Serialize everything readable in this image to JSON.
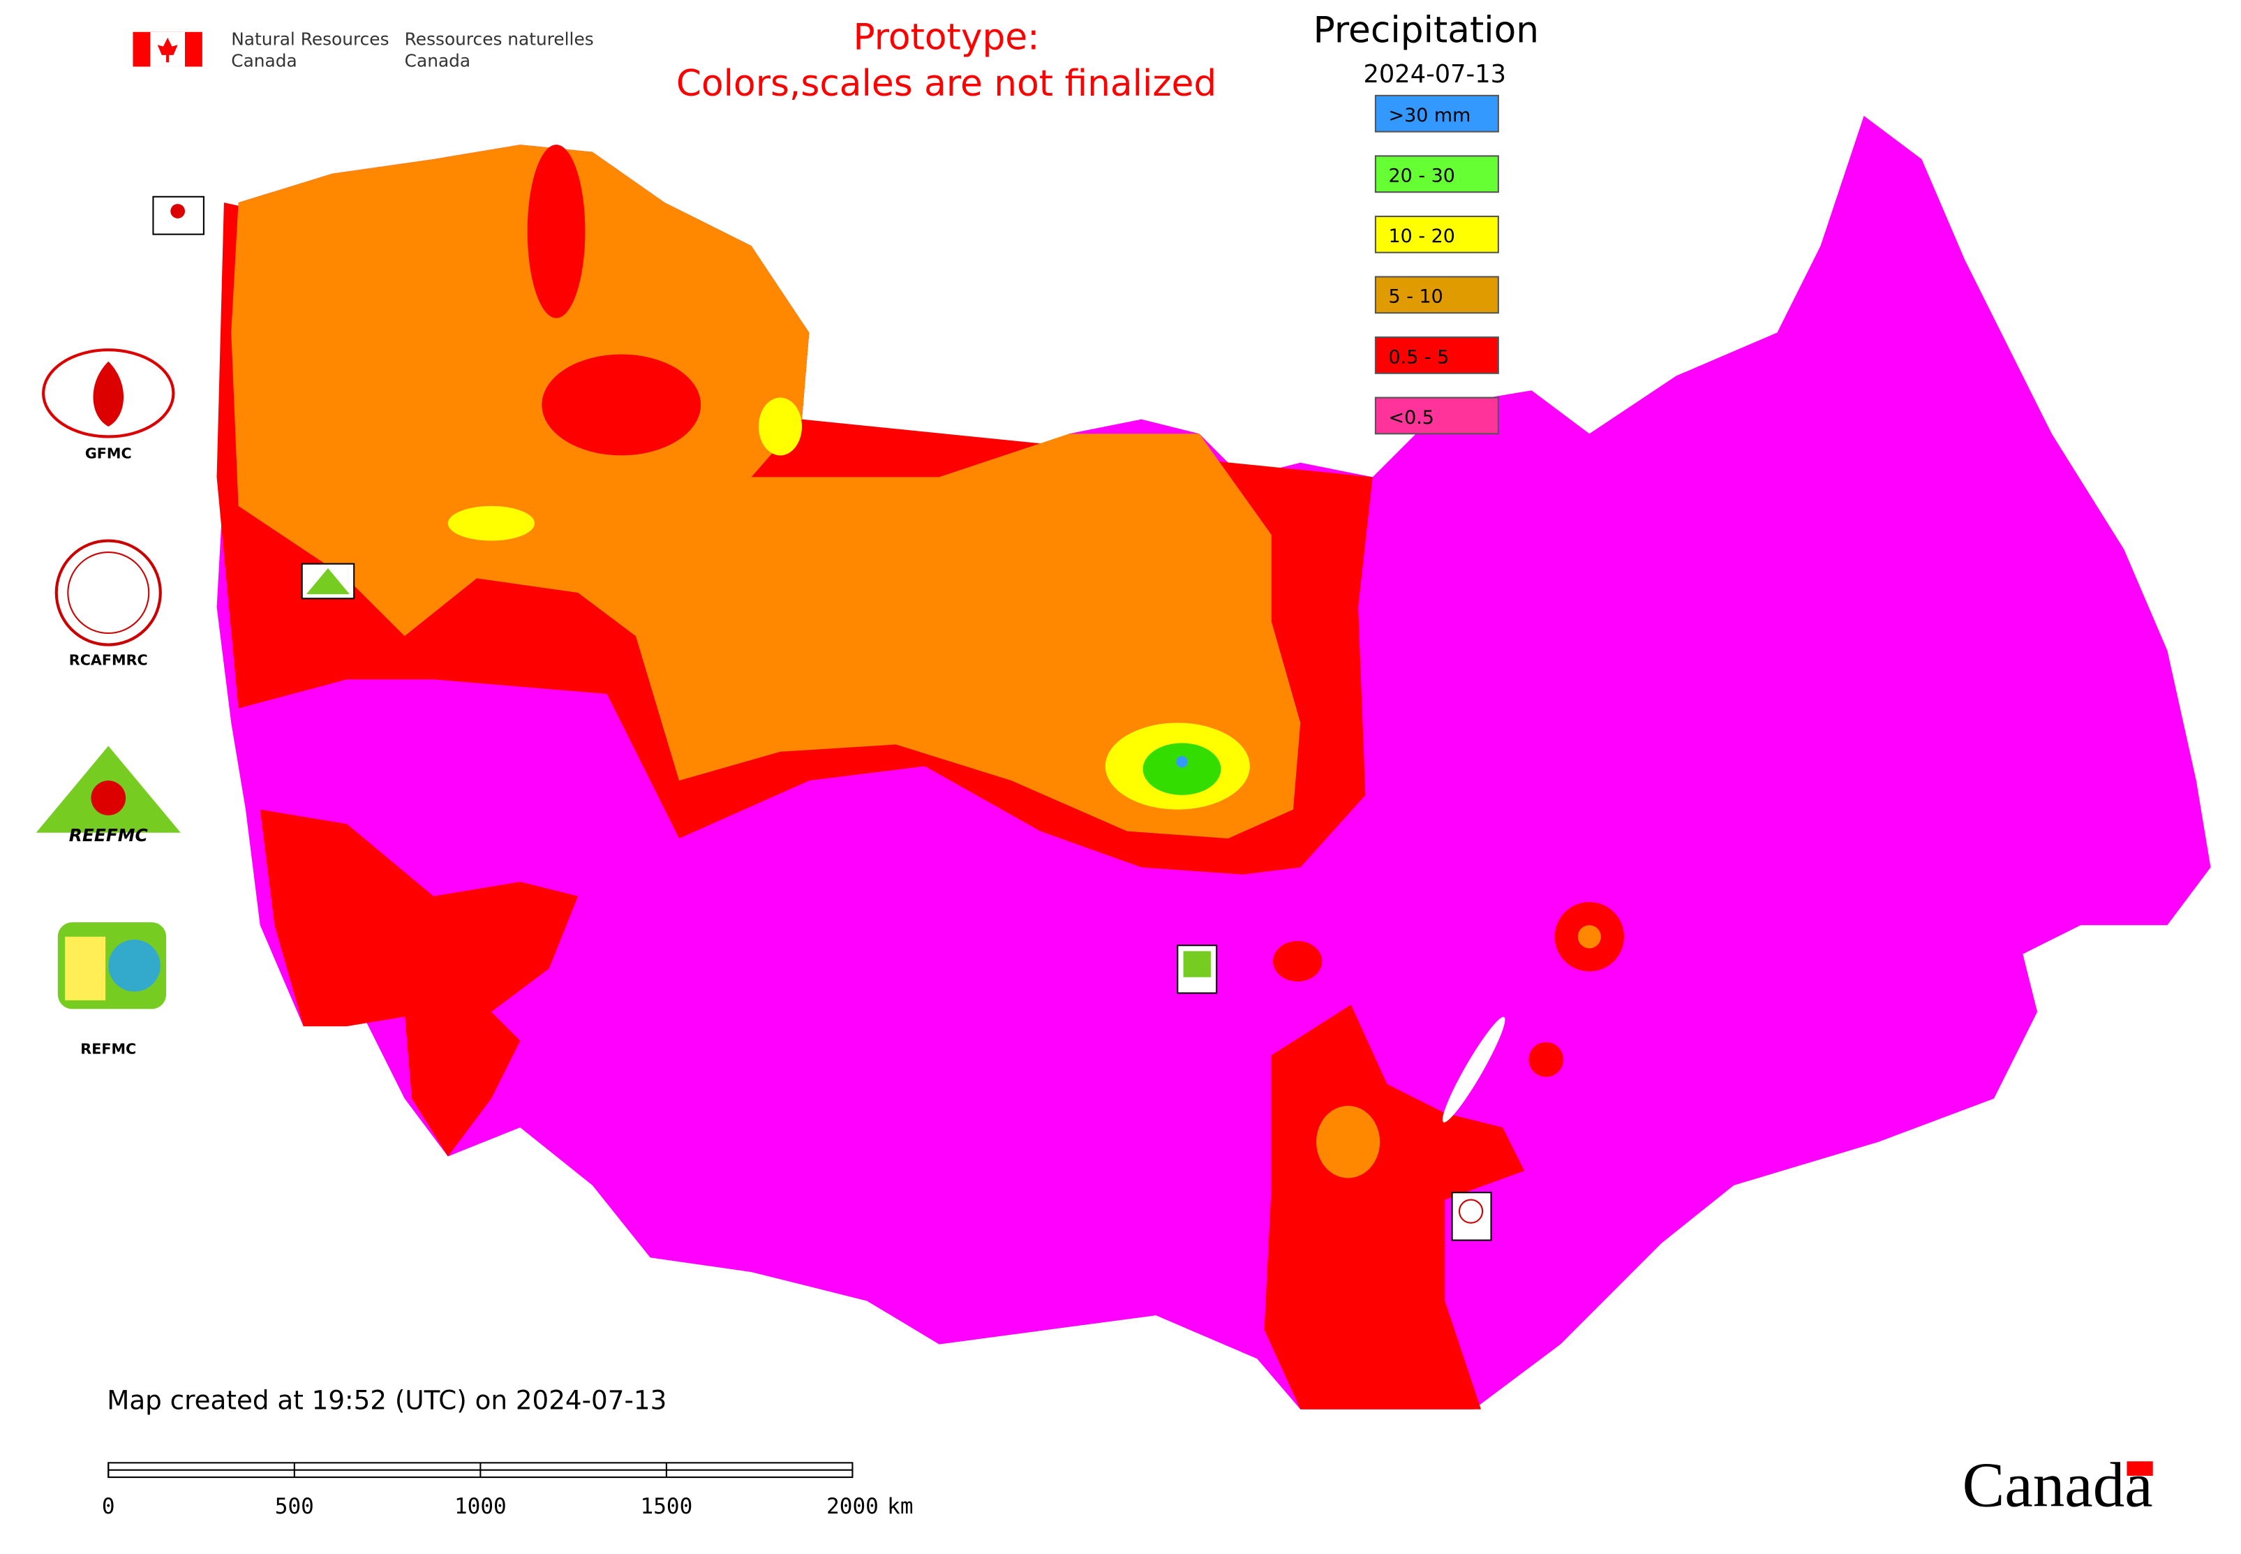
{
  "header": {
    "agency_en": [
      "Natural Resources",
      "Canada"
    ],
    "agency_fr": [
      "Ressources naturelles",
      "Canada"
    ]
  },
  "notice": [
    "Prototype:",
    "Colors,scales are not finalized"
  ],
  "legend": {
    "title": "Precipitation",
    "date": "2024-07-13",
    "items": [
      {
        "label": ">30 mm",
        "color": "#3399ff"
      },
      {
        "label": "20 - 30",
        "color": "#66ff33"
      },
      {
        "label": "10 - 20",
        "color": "#ffff00"
      },
      {
        "label": "5 - 10",
        "color": "#e09b00"
      },
      {
        "label": "0.5 - 5",
        "color": "#ff0000"
      },
      {
        "label": "<0.5",
        "color": "#ff3399"
      }
    ]
  },
  "logos": [
    "GFMC",
    "RCAFMRC",
    "REEFMC",
    "REFMC"
  ],
  "footer": "Map created at 19:52 (UTC) on 2024-07-13",
  "scale_bar": {
    "ticks": [
      0,
      500,
      1000,
      1500,
      2000
    ],
    "unit": "km"
  },
  "wordmark": "Canada"
}
